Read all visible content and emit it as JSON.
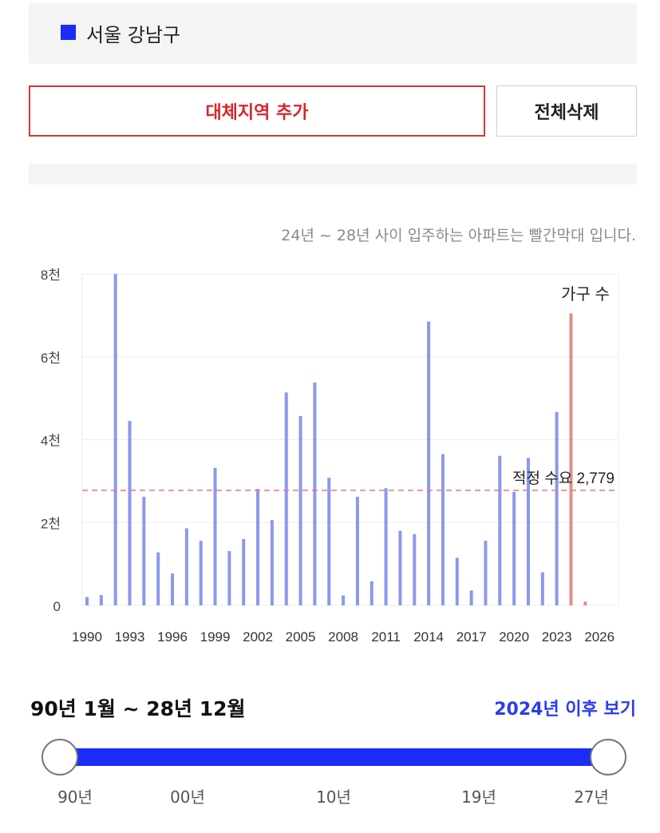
{
  "region": {
    "name": "서울 강남구",
    "color": "#1a2cf5"
  },
  "buttons": {
    "add_label": "대체지역 추가",
    "delete_label": "전체삭제"
  },
  "chart_note": "24년 ~ 28년 사이 입주하는 아파트는 빨간막대 입니다.",
  "chart_data": {
    "type": "bar",
    "x": [
      1990,
      1991,
      1992,
      1993,
      1994,
      1995,
      1996,
      1997,
      1998,
      1999,
      2000,
      2001,
      2002,
      2003,
      2004,
      2005,
      2006,
      2007,
      2008,
      2009,
      2010,
      2011,
      2012,
      2013,
      2014,
      2015,
      2016,
      2017,
      2018,
      2019,
      2020,
      2021,
      2022,
      2023,
      2024,
      2025
    ],
    "values": [
      200,
      250,
      8000,
      4450,
      2620,
      1280,
      770,
      1860,
      1560,
      3320,
      1310,
      1600,
      2810,
      2060,
      5140,
      4570,
      5380,
      3080,
      240,
      2620,
      580,
      2830,
      1800,
      1720,
      6850,
      3650,
      1150,
      360,
      1560,
      3610,
      2740,
      3560,
      800,
      4670,
      7050,
      90
    ],
    "highlight_from": 2024,
    "colors": {
      "normal": "#8b98ec",
      "highlight": "#e88a86",
      "reference": "#e77a78"
    },
    "ylim": [
      0,
      8000
    ],
    "yticks": [
      {
        "value": 0,
        "label": "0"
      },
      {
        "value": 2000,
        "label": "2천"
      },
      {
        "value": 4000,
        "label": "4천"
      },
      {
        "value": 6000,
        "label": "6천"
      },
      {
        "value": 8000,
        "label": "8천"
      }
    ],
    "xticks": [
      1990,
      1993,
      1996,
      1999,
      2002,
      2005,
      2008,
      2011,
      2014,
      2017,
      2020,
      2023,
      2026
    ],
    "reference_line": {
      "value": 2779,
      "label": "적정 수요 2,779"
    },
    "highlight_label": "가구 수",
    "grid": true
  },
  "range": {
    "label": "90년 1월 ~ 28년 12월",
    "after_link": "2024년 이후 보기"
  },
  "slider": {
    "ticks": [
      "90년",
      "00년",
      "10년",
      "19년",
      "27년"
    ],
    "start_value": "90년",
    "end_value": "27년"
  }
}
